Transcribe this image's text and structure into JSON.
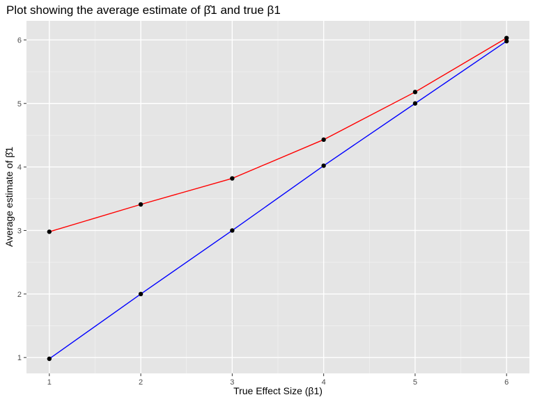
{
  "chart_data": {
    "type": "line",
    "title": "Plot showing the average estimate of β̂1 and true β1",
    "xlabel": "True Effect Size (β1)",
    "ylabel": "Average estimate of β̂1",
    "x": [
      1,
      2,
      3,
      4,
      5,
      6
    ],
    "xlim": [
      0.75,
      6.25
    ],
    "ylim": [
      0.75,
      6.3
    ],
    "xticks": [
      "1",
      "2",
      "3",
      "4",
      "5",
      "6"
    ],
    "yticks": [
      "1",
      "2",
      "3",
      "4",
      "5",
      "6"
    ],
    "grid": true,
    "legend": "none",
    "background": "#e5e5e5",
    "series": [
      {
        "color": "#ff0000",
        "values": [
          2.98,
          3.41,
          3.82,
          4.43,
          5.18,
          6.03
        ]
      },
      {
        "color": "#0000ff",
        "values": [
          0.98,
          2.0,
          3.0,
          4.02,
          5.0,
          5.98
        ]
      }
    ],
    "point_color": "#000000"
  }
}
